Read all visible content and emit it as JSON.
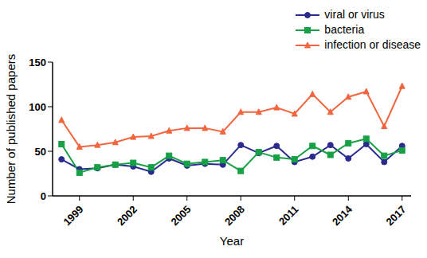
{
  "chart_data": {
    "type": "line",
    "x_label": "Year",
    "y_label": "Number of published papers",
    "x": [
      1998,
      1999,
      2000,
      2001,
      2002,
      2003,
      2004,
      2005,
      2006,
      2007,
      2008,
      2009,
      2010,
      2011,
      2012,
      2013,
      2014,
      2015,
      2016,
      2017
    ],
    "xlim": [
      1997.5,
      2017.5
    ],
    "xticks": [
      1999,
      2002,
      2005,
      2008,
      2011,
      2014,
      2017
    ],
    "ylim": [
      0,
      150
    ],
    "yticks": [
      0,
      50,
      100,
      150
    ],
    "grid": false,
    "legend": "upper right",
    "series": [
      {
        "name": "viral or virus",
        "color": "#2b2a8f",
        "marker": "circle",
        "values": [
          41,
          30,
          31,
          35,
          33,
          27,
          42,
          34,
          36,
          35,
          57,
          48,
          56,
          38,
          44,
          57,
          42,
          58,
          38,
          56
        ]
      },
      {
        "name": "bacteria",
        "color": "#17a045",
        "marker": "square",
        "values": [
          58,
          26,
          32,
          35,
          37,
          32,
          45,
          36,
          38,
          40,
          28,
          49,
          43,
          41,
          56,
          46,
          59,
          64,
          45,
          51
        ]
      },
      {
        "name": "infection or disease",
        "color": "#f2663f",
        "marker": "triangle",
        "values": [
          85,
          55,
          57,
          60,
          66,
          67,
          73,
          76,
          76,
          72,
          94,
          94,
          99,
          92,
          114,
          94,
          111,
          117,
          78,
          123
        ]
      }
    ]
  }
}
